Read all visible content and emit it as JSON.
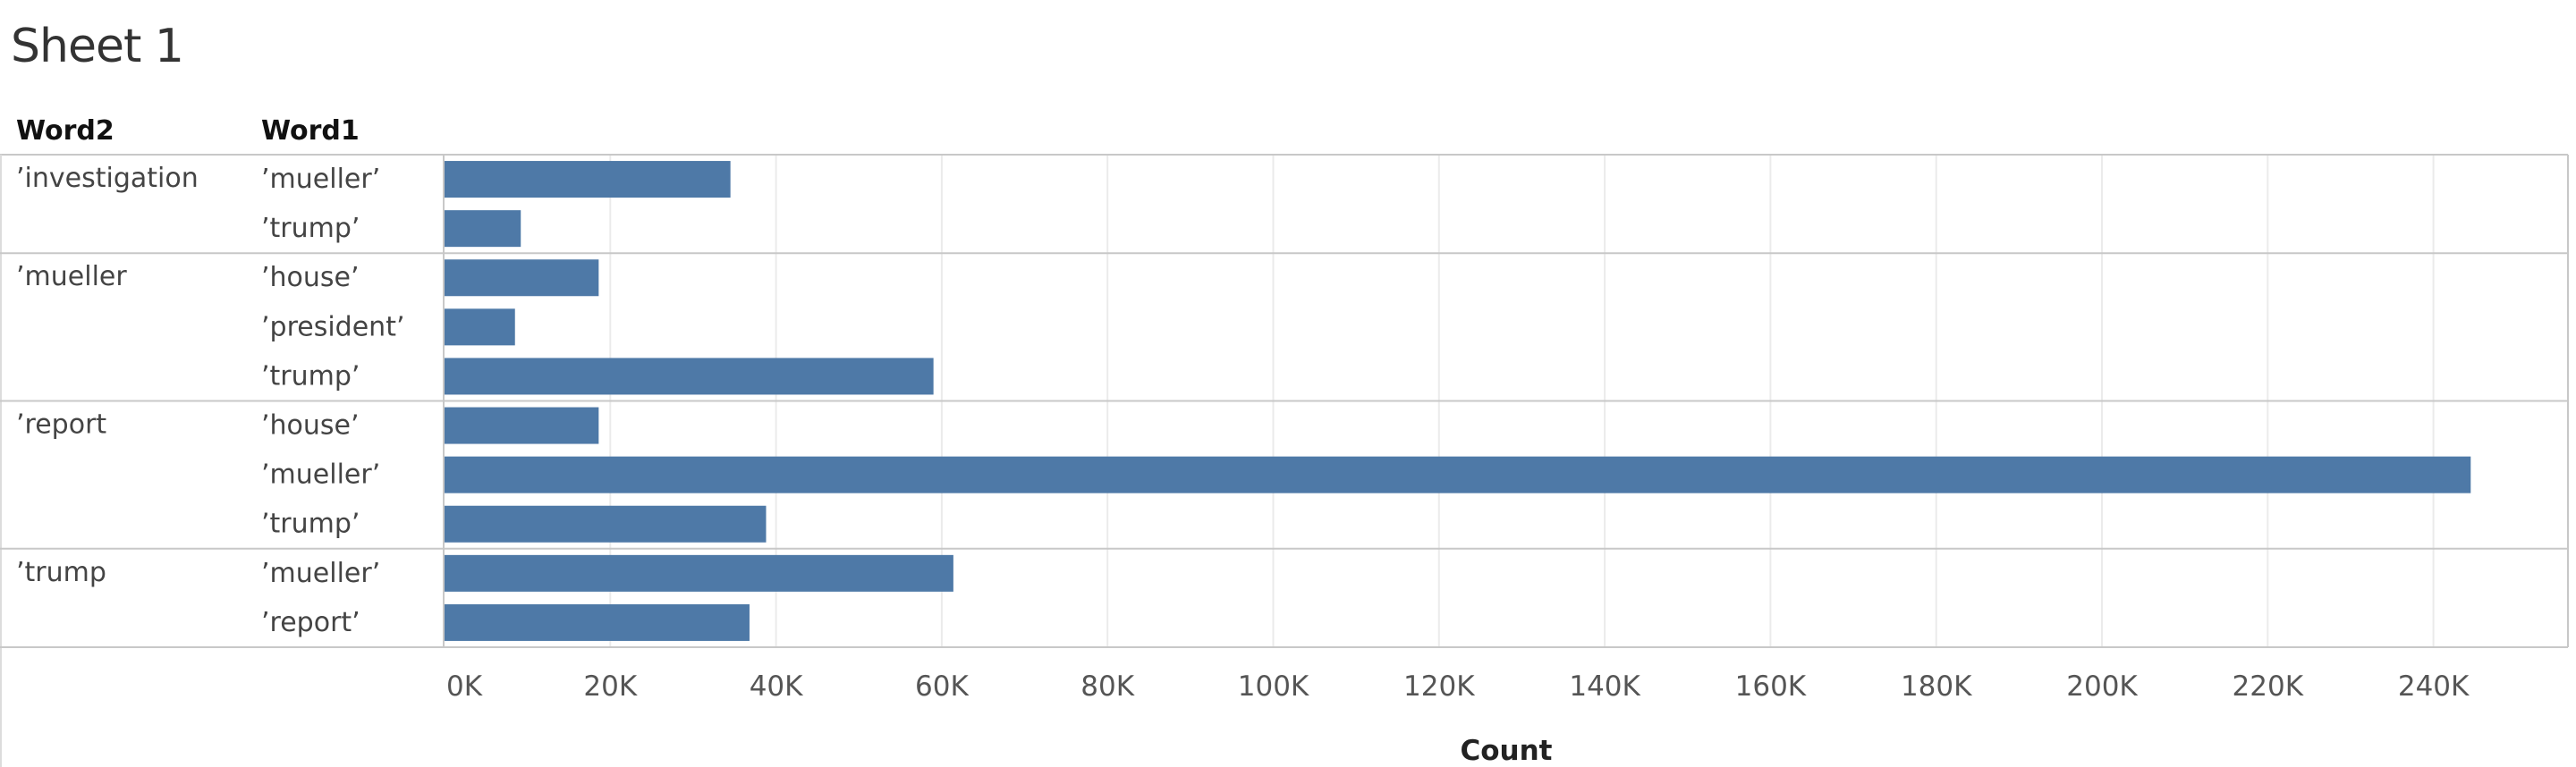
{
  "sheet": {
    "title": "Sheet 1"
  },
  "headers": {
    "word2": "Word2",
    "word1": "Word1"
  },
  "chart_data": {
    "type": "bar",
    "orientation": "horizontal",
    "title": "Sheet 1",
    "xlabel": "Count",
    "xlim": [
      0,
      254000
    ],
    "x_ticks": [
      0,
      20000,
      40000,
      60000,
      80000,
      100000,
      120000,
      140000,
      160000,
      180000,
      200000,
      220000,
      240000
    ],
    "x_tick_labels": [
      "0K",
      "20K",
      "40K",
      "60K",
      "80K",
      "100K",
      "120K",
      "140K",
      "160K",
      "180K",
      "200K",
      "220K",
      "240K"
    ],
    "grid": true,
    "bar_color": "#4e79a7",
    "groups": [
      {
        "word2": "’investigation",
        "rows": [
          {
            "word1": "’mueller’",
            "count": 34500
          },
          {
            "word1": "’trump’",
            "count": 9200
          }
        ]
      },
      {
        "word2": "’mueller",
        "rows": [
          {
            "word1": "’house’",
            "count": 18600
          },
          {
            "word1": "’president’",
            "count": 8500
          },
          {
            "word1": "’trump’",
            "count": 59000
          }
        ]
      },
      {
        "word2": "’report",
        "rows": [
          {
            "word1": "’house’",
            "count": 18600
          },
          {
            "word1": "’mueller’",
            "count": 244500
          },
          {
            "word1": "’trump’",
            "count": 38800
          }
        ]
      },
      {
        "word2": "’trump",
        "rows": [
          {
            "word1": "’mueller’",
            "count": 61400
          },
          {
            "word1": "’report’",
            "count": 36800
          }
        ]
      }
    ]
  }
}
